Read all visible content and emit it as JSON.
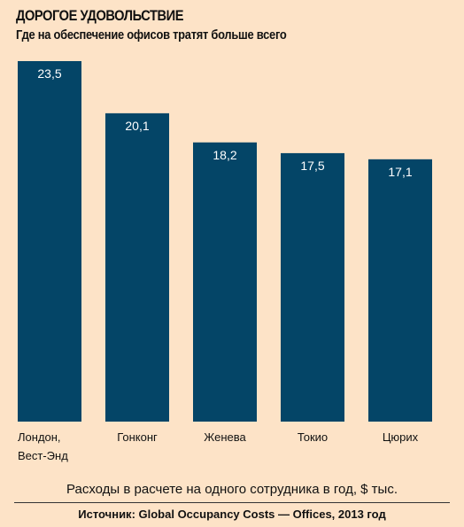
{
  "title": "ДОРОГОЕ УДОВОЛЬСТВИЕ",
  "subtitle": "Где на обеспечение офисов тратят больше всего",
  "caption": "Расходы в расчете на одного сотрудника в год, $ тыс.",
  "source": "Источник: Global Occupancy Costs — Offices, 2013 год",
  "colors": {
    "bar": "#044567",
    "background": "#fde3c7",
    "label": "#ffffff"
  },
  "chart_data": {
    "type": "bar",
    "title": "ДОРОГОЕ УДОВОЛЬСТВИЕ",
    "subtitle": "Где на обеспечение офисов тратят больше всего",
    "xlabel": "Расходы в расчете на одного сотрудника в год, $ тыс.",
    "ylabel": "",
    "categories": [
      [
        "Лондон,",
        "Вест-Энд"
      ],
      [
        "Гонконг"
      ],
      [
        "Женева"
      ],
      [
        "Токио"
      ],
      [
        "Цюрих"
      ]
    ],
    "values": [
      23.5,
      20.1,
      18.2,
      17.5,
      17.1
    ],
    "value_labels": [
      "23,5",
      "20,1",
      "18,2",
      "17,5",
      "17,1"
    ],
    "ylim": [
      0,
      23.5
    ],
    "grid": false,
    "legend": "none"
  }
}
